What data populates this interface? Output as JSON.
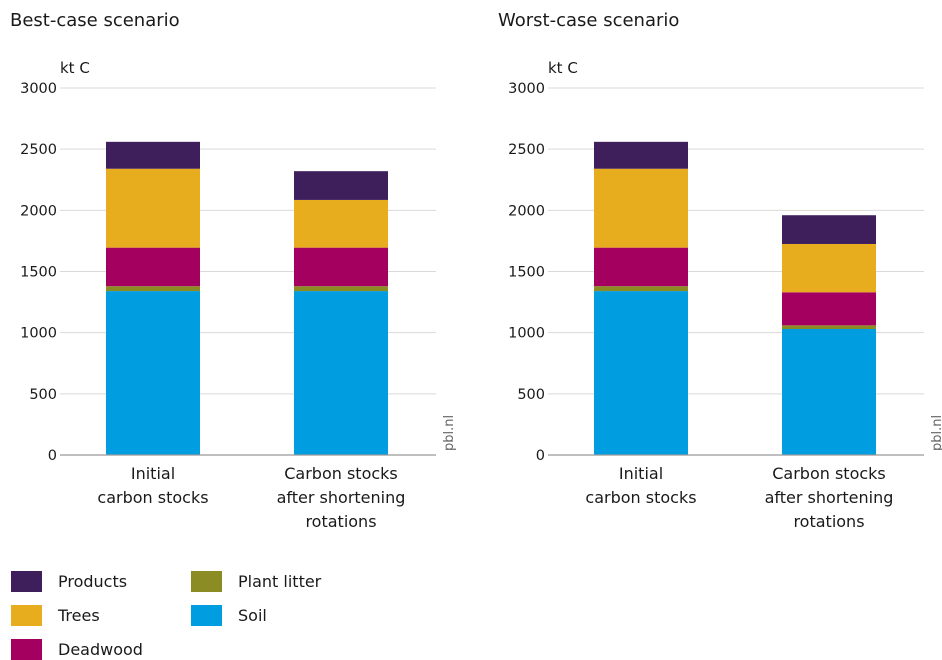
{
  "chart_data": [
    {
      "type": "bar",
      "stacked": true,
      "title": "Best-case scenario",
      "ylabel": "kt C",
      "ylim": [
        0,
        3000
      ],
      "yticks": [
        0,
        500,
        1000,
        1500,
        2000,
        2500,
        3000
      ],
      "grid": true,
      "categories": [
        [
          "Initial",
          "carbon stocks"
        ],
        [
          "Carbon stocks",
          "after shortening",
          "rotations"
        ]
      ],
      "series": [
        {
          "name": "Soil",
          "values": [
            1340,
            1340
          ]
        },
        {
          "name": "Plant litter",
          "values": [
            40,
            40
          ]
        },
        {
          "name": "Deadwood",
          "values": [
            315,
            315
          ]
        },
        {
          "name": "Trees",
          "values": [
            645,
            390
          ]
        },
        {
          "name": "Products",
          "values": [
            220,
            235
          ]
        }
      ],
      "source": "pbl.nl"
    },
    {
      "type": "bar",
      "stacked": true,
      "title": "Worst-case scenario",
      "ylabel": "kt C",
      "ylim": [
        0,
        3000
      ],
      "yticks": [
        0,
        500,
        1000,
        1500,
        2000,
        2500,
        3000
      ],
      "grid": true,
      "categories": [
        [
          "Initial",
          "carbon stocks"
        ],
        [
          "Carbon stocks",
          "after shortening",
          "rotations"
        ]
      ],
      "series": [
        {
          "name": "Soil",
          "values": [
            1340,
            1030
          ]
        },
        {
          "name": "Plant litter",
          "values": [
            40,
            30
          ]
        },
        {
          "name": "Deadwood",
          "values": [
            315,
            270
          ]
        },
        {
          "name": "Trees",
          "values": [
            645,
            395
          ]
        },
        {
          "name": "Products",
          "values": [
            220,
            235
          ]
        }
      ],
      "source": "pbl.nl"
    }
  ],
  "colors": {
    "Soil": "#009ee0",
    "Plant litter": "#8c8c24",
    "Deadwood": "#a4005f",
    "Trees": "#e8ad1f",
    "Products": "#3f1e5c"
  },
  "legend": {
    "placement": "bottom-left",
    "items": [
      {
        "label": "Products",
        "series": "Products"
      },
      {
        "label": "Trees",
        "series": "Trees"
      },
      {
        "label": "Deadwood",
        "series": "Deadwood"
      },
      {
        "label": "Plant litter",
        "series": "Plant litter"
      },
      {
        "label": "Soil",
        "series": "Soil"
      }
    ]
  }
}
